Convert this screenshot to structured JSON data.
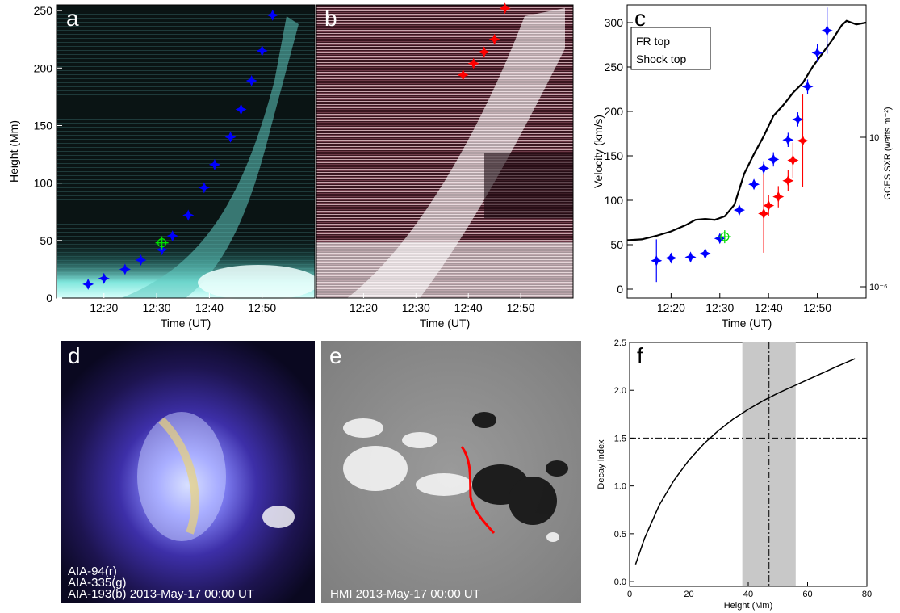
{
  "chart_data": [
    {
      "panel": "a",
      "type": "scatter",
      "ylabel": "Height (Mm)",
      "xlabel": "Time (UT)",
      "x_ticks": [
        "12:20",
        "12:30",
        "12:40",
        "12:50"
      ],
      "y_ticks": [
        0,
        50,
        100,
        150,
        200,
        250
      ],
      "xlim": [
        "12:11",
        "13:00"
      ],
      "ylim": [
        0,
        255
      ],
      "series": [
        {
          "marker_color": "#0000ff",
          "x": [
            "12:17",
            "12:20",
            "12:24",
            "12:27",
            "12:31",
            "12:33",
            "12:36",
            "12:39",
            "12:41",
            "12:44",
            "12:46",
            "12:48",
            "12:50",
            "12:52"
          ],
          "y": [
            12,
            17,
            25,
            33,
            42,
            54,
            72,
            96,
            116,
            140,
            164,
            189,
            215,
            246
          ]
        }
      ],
      "marker_green": {
        "x": "12:31",
        "y": 48
      },
      "background_color": "#7fe6dc"
    },
    {
      "panel": "b",
      "type": "scatter",
      "xlabel": "Time (UT)",
      "x_ticks": [
        "12:20",
        "12:30",
        "12:40",
        "12:50"
      ],
      "xlim": [
        "12:11",
        "13:00"
      ],
      "ylim": [
        0,
        255
      ],
      "series": [
        {
          "marker_color": "#ff0000",
          "x": [
            "12:39",
            "12:41",
            "12:43",
            "12:45",
            "12:47"
          ],
          "y": [
            194,
            204,
            214,
            225,
            252
          ]
        }
      ],
      "background_color": "#5a2a38"
    },
    {
      "panel": "c",
      "type": "scatter",
      "xlabel": "Time (UT)",
      "ylabel": "Velocity (km/s)",
      "ylabel_right": "GOES SXR (watts m⁻²)",
      "x_ticks": [
        "12:20",
        "12:30",
        "12:40",
        "12:50"
      ],
      "y_ticks": [
        0,
        50,
        100,
        150,
        200,
        250,
        300
      ],
      "y_right_ticks": [
        "10⁻⁶",
        "10⁻⁵"
      ],
      "xlim": [
        "12:11",
        "13:00"
      ],
      "ylim": [
        -10,
        320
      ],
      "legend": {
        "position": "top-left",
        "entries": [
          "FR top",
          "Shock top"
        ]
      },
      "series": [
        {
          "name": "FR top",
          "color": "#0000ff",
          "x": [
            "12:17",
            "12:20",
            "12:24",
            "12:27",
            "12:30",
            "12:34",
            "12:37",
            "12:39",
            "12:41",
            "12:44",
            "12:46",
            "12:48",
            "12:50",
            "12:52"
          ],
          "y": [
            32,
            35,
            36,
            40,
            57,
            89,
            118,
            136,
            146,
            168,
            191,
            228,
            266,
            291
          ],
          "err": [
            24,
            5,
            5,
            5,
            5,
            5,
            5,
            8,
            8,
            8,
            8,
            8,
            10,
            26
          ]
        },
        {
          "name": "Shock top",
          "color": "#ff0000",
          "x": [
            "12:39",
            "12:40",
            "12:42",
            "12:44",
            "12:45",
            "12:47"
          ],
          "y": [
            85,
            94,
            104,
            122,
            145,
            167
          ],
          "err": [
            44,
            12,
            12,
            12,
            20,
            52
          ]
        }
      ],
      "goes": {
        "color": "#000000",
        "x": [
          "12:11",
          "12:14",
          "12:17",
          "12:20",
          "12:23",
          "12:25",
          "12:27",
          "12:29",
          "12:31",
          "12:33",
          "12:35",
          "12:37",
          "12:39",
          "12:41",
          "12:43",
          "12:45",
          "12:47",
          "12:49",
          "12:51",
          "12:53",
          "12:55",
          "12:56",
          "12:58",
          "13:00"
        ],
        "y": [
          55,
          56,
          60,
          65,
          72,
          78,
          79,
          78,
          82,
          95,
          130,
          152,
          172,
          195,
          207,
          221,
          232,
          250,
          265,
          280,
          297,
          302,
          298,
          300
        ]
      },
      "marker_green": {
        "x": "12:31",
        "y": 59
      }
    },
    {
      "panel": "d",
      "type": "image",
      "labels": [
        "AIA-94(r)",
        "AIA-335(g)",
        "AIA-193(b)  2013-May-17 00:00 UT"
      ]
    },
    {
      "panel": "e",
      "type": "image",
      "labels": [
        "HMI  2013-May-17 00:00 UT"
      ],
      "pil_color": "#ff0000"
    },
    {
      "panel": "f",
      "type": "line",
      "xlabel": "Height (Mm)",
      "ylabel": "Decay Index",
      "x_ticks": [
        0,
        20,
        40,
        60,
        80
      ],
      "y_ticks": [
        "0.0",
        "0.5",
        "1.0",
        "1.5",
        "2.0",
        "2.5"
      ],
      "xlim": [
        0,
        80
      ],
      "ylim": [
        -0.05,
        2.5
      ],
      "x": [
        2,
        5,
        10,
        15,
        20,
        25,
        30,
        35,
        40,
        45,
        50,
        55,
        60,
        65,
        70,
        76
      ],
      "y": [
        0.18,
        0.45,
        0.8,
        1.06,
        1.27,
        1.44,
        1.58,
        1.7,
        1.8,
        1.89,
        1.97,
        2.04,
        2.11,
        2.18,
        2.25,
        2.33
      ],
      "hline": 1.5,
      "vline": 47,
      "shaded_range": [
        38,
        56
      ]
    }
  ]
}
